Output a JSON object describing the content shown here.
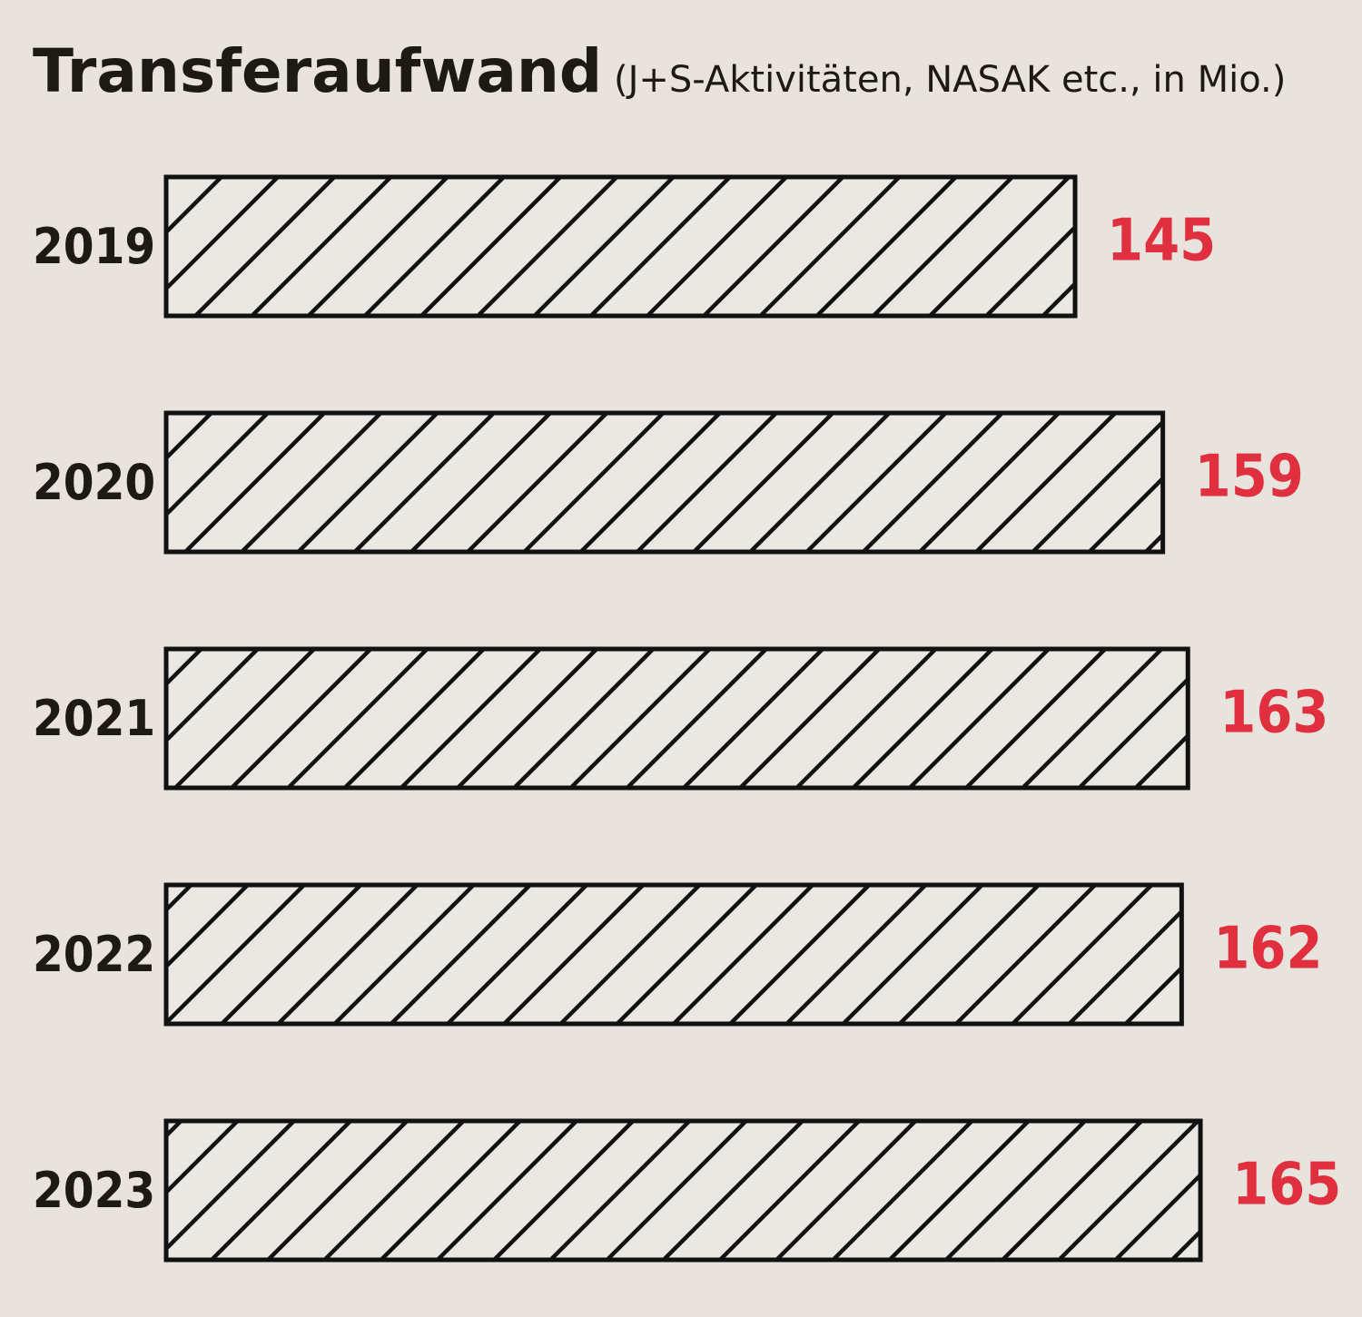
{
  "chart_data": {
    "type": "bar",
    "orientation": "horizontal",
    "title": "Transferaufwand",
    "subtitle": "(J+S-Aktivitäten, NASAK etc., in Mio.)",
    "categories": [
      "2019",
      "2020",
      "2021",
      "2022",
      "2023"
    ],
    "values": [
      145,
      159,
      163,
      162,
      165
    ],
    "value_labels": [
      "145",
      "159",
      "163",
      "162",
      "165"
    ],
    "xlabel": "",
    "ylabel": "",
    "grid": false,
    "legend": "none",
    "bar_fill": "diagonal-hatch",
    "colors": {
      "background": "#e8e3dd",
      "bar_fill": "#ebe7e2",
      "bar_stroke": "#111111",
      "text": "#1c1a12",
      "value_label": "#e0303f"
    }
  }
}
